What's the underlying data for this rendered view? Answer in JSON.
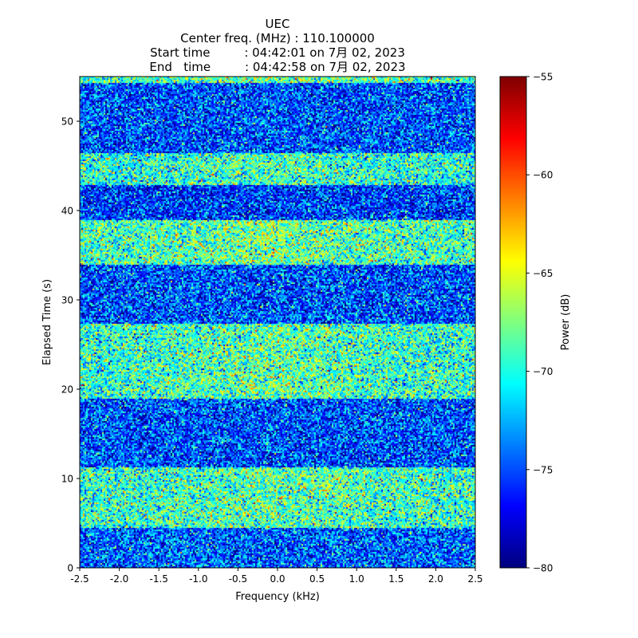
{
  "chart_data": {
    "type": "heatmap",
    "title": [
      "UEC",
      "Center freq. (MHz) : 110.100000",
      "Start time         : 04:42:01 on 7月 02, 2023",
      "End   time         : 04:42:58 on 7月 02, 2023"
    ],
    "xlabel": "Frequency (kHz)",
    "ylabel": "Elapsed Time (s)",
    "xlim": [
      -2.5,
      2.5
    ],
    "ylim": [
      0,
      55
    ],
    "x_ticks": [
      "-2.5",
      "-2.0",
      "-1.5",
      "-1.0",
      "-0.5",
      "0.0",
      "0.5",
      "1.0",
      "1.5",
      "2.0",
      "2.5"
    ],
    "y_ticks": [
      "0",
      "10",
      "20",
      "30",
      "40",
      "50"
    ],
    "colorbar": {
      "label": "Power (dB)",
      "range": [
        -80,
        -55
      ],
      "ticks": [
        "−55",
        "−60",
        "−65",
        "−70",
        "−75",
        "−80"
      ],
      "colormap": "jet"
    },
    "bands": [
      {
        "t_start": 0.0,
        "t_end": 4.5,
        "level": "low",
        "mean_db": -74.5
      },
      {
        "t_start": 4.5,
        "t_end": 11.2,
        "level": "high",
        "mean_db": -69.0
      },
      {
        "t_start": 11.2,
        "t_end": 19.0,
        "level": "low",
        "mean_db": -75.0
      },
      {
        "t_start": 19.0,
        "t_end": 27.3,
        "level": "high",
        "mean_db": -69.0
      },
      {
        "t_start": 27.3,
        "t_end": 34.0,
        "level": "low",
        "mean_db": -75.0
      },
      {
        "t_start": 34.0,
        "t_end": 39.0,
        "level": "high",
        "mean_db": -68.5
      },
      {
        "t_start": 39.0,
        "t_end": 42.8,
        "level": "low",
        "mean_db": -75.5
      },
      {
        "t_start": 42.8,
        "t_end": 46.5,
        "level": "high",
        "mean_db": -69.5
      },
      {
        "t_start": 46.5,
        "t_end": 54.2,
        "level": "low",
        "mean_db": -75.0
      },
      {
        "t_start": 54.2,
        "t_end": 55.0,
        "level": "high",
        "mean_db": -68.5
      }
    ]
  }
}
